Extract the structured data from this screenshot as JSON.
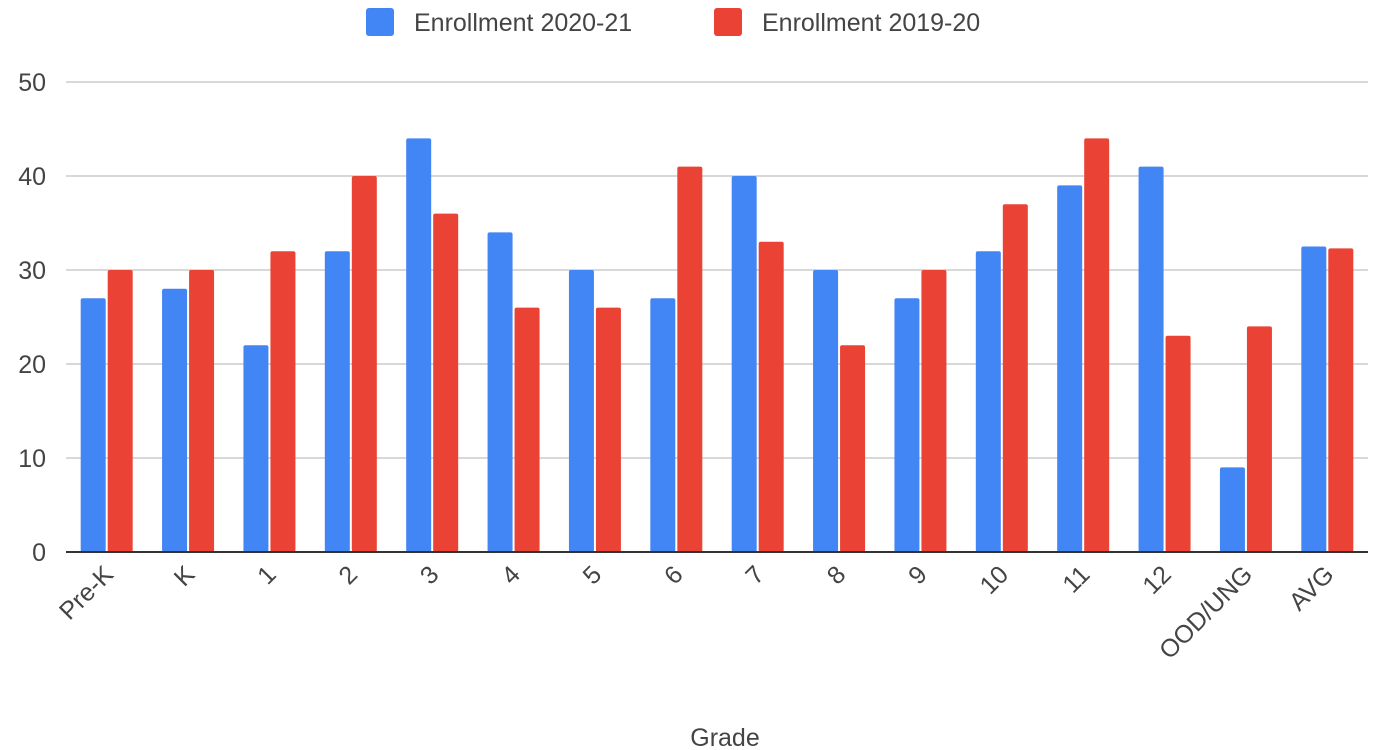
{
  "chart_data": {
    "type": "bar",
    "title": "",
    "xlabel": "Grade",
    "ylabel": "",
    "ylim": [
      0,
      50
    ],
    "yticks": [
      0,
      10,
      20,
      30,
      40,
      50
    ],
    "grid": true,
    "legend": "top-center",
    "categories": [
      "Pre-K",
      "K",
      "1",
      "2",
      "3",
      "4",
      "5",
      "6",
      "7",
      "8",
      "9",
      "10",
      "11",
      "12",
      "OOD/UNG",
      "AVG"
    ],
    "series": [
      {
        "name": "Enrollment 2020-21",
        "color": "#4285f4",
        "values": [
          27,
          28,
          22,
          32,
          44,
          34,
          30,
          27,
          40,
          30,
          27,
          32,
          39,
          41,
          9,
          32.5
        ]
      },
      {
        "name": "Enrollment 2019-20",
        "color": "#ea4335",
        "values": [
          30,
          30,
          32,
          40,
          36,
          26,
          26,
          41,
          33,
          22,
          30,
          37,
          44,
          23,
          24,
          32.3
        ]
      }
    ]
  }
}
